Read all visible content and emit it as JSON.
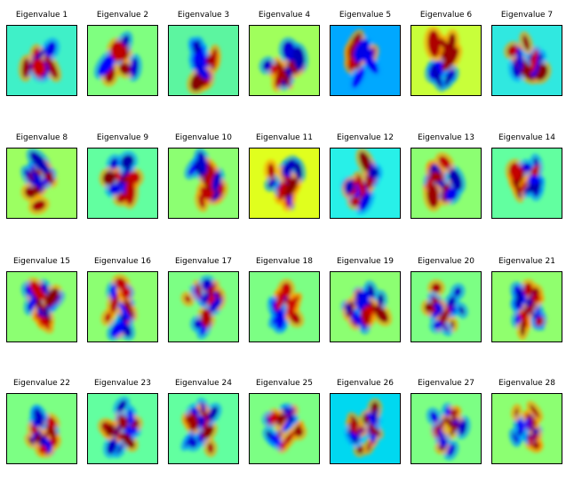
{
  "chart_data": {
    "type": "heatmap",
    "colormap": "jet",
    "layout": {
      "rows": 4,
      "cols": 7
    },
    "panels": [
      {
        "title": "Eigenvalue 1",
        "bg": "#3ff0c8"
      },
      {
        "title": "Eigenvalue 2",
        "bg": "#7fff80"
      },
      {
        "title": "Eigenvalue 3",
        "bg": "#5cf5a0"
      },
      {
        "title": "Eigenvalue 4",
        "bg": "#a0ff5c"
      },
      {
        "title": "Eigenvalue 5",
        "bg": "#00a8ff"
      },
      {
        "title": "Eigenvalue 6",
        "bg": "#c8ff3a"
      },
      {
        "title": "Eigenvalue 7",
        "bg": "#30e8e0"
      },
      {
        "title": "Eigenvalue 8",
        "bg": "#9cff62"
      },
      {
        "title": "Eigenvalue 9",
        "bg": "#62ffa0"
      },
      {
        "title": "Eigenvalue 10",
        "bg": "#8cff72"
      },
      {
        "title": "Eigenvalue 11",
        "bg": "#e0ff1e"
      },
      {
        "title": "Eigenvalue 12",
        "bg": "#28f0e8"
      },
      {
        "title": "Eigenvalue 13",
        "bg": "#8cff72"
      },
      {
        "title": "Eigenvalue 14",
        "bg": "#62ffa0"
      },
      {
        "title": "Eigenvalue 15",
        "bg": "#8cff72"
      },
      {
        "title": "Eigenvalue 16",
        "bg": "#8cff72"
      },
      {
        "title": "Eigenvalue 17",
        "bg": "#7cff84"
      },
      {
        "title": "Eigenvalue 18",
        "bg": "#7cff84"
      },
      {
        "title": "Eigenvalue 19",
        "bg": "#8cff72"
      },
      {
        "title": "Eigenvalue 20",
        "bg": "#7cff84"
      },
      {
        "title": "Eigenvalue 21",
        "bg": "#90ff6e"
      },
      {
        "title": "Eigenvalue 22",
        "bg": "#7cff84"
      },
      {
        "title": "Eigenvalue 23",
        "bg": "#62ffa0"
      },
      {
        "title": "Eigenvalue 24",
        "bg": "#62ffa0"
      },
      {
        "title": "Eigenvalue 25",
        "bg": "#7cff84"
      },
      {
        "title": "Eigenvalue 26",
        "bg": "#00d8f0"
      },
      {
        "title": "Eigenvalue 27",
        "bg": "#7cff84"
      },
      {
        "title": "Eigenvalue 28",
        "bg": "#8cff72"
      }
    ]
  }
}
